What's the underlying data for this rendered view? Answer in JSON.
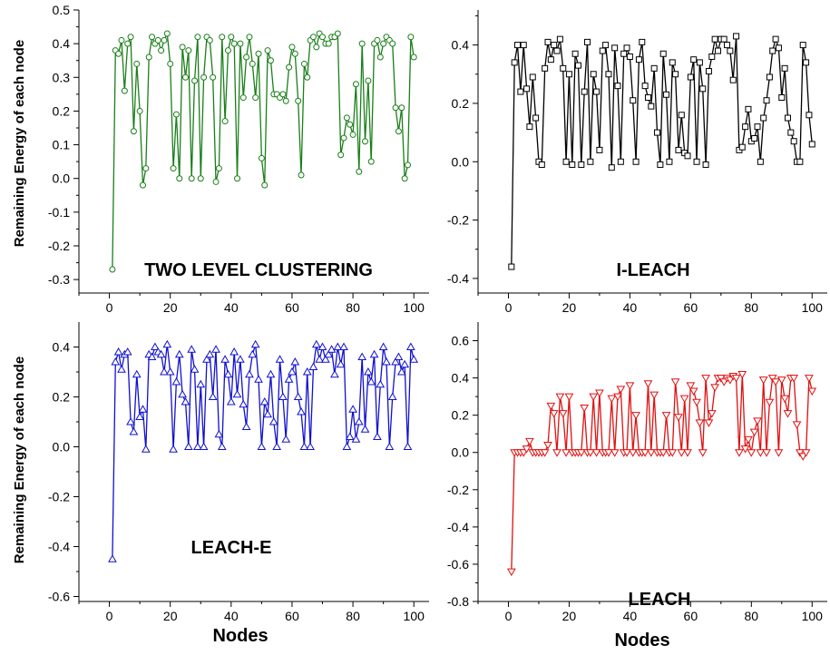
{
  "figure": {
    "y_axis_label": "Remaining Energy of each node",
    "x_axis_label": "Nodes"
  },
  "chart_data": [
    {
      "type": "line",
      "title": "TWO LEVEL CLUSTERING",
      "xlabel": "",
      "ylabel": "Remaining Energy of each node",
      "xlim": [
        -10,
        105
      ],
      "ylim": [
        -0.34,
        0.5
      ],
      "xticks": [
        0,
        20,
        40,
        60,
        80,
        100
      ],
      "yticks": [
        -0.3,
        -0.2,
        -0.1,
        0.0,
        0.1,
        0.2,
        0.3,
        0.4,
        0.5
      ],
      "ytick_labels": [
        "-0.3",
        "-0.2",
        "-0.1",
        "0.0",
        "0.1",
        "0.2",
        "0.3",
        "0.4",
        "0.5"
      ],
      "marker": "circle",
      "color": "#1a7f1a",
      "series": [
        {
          "x": [
            1,
            2,
            3,
            4,
            5,
            6,
            7,
            8,
            9,
            10,
            11,
            12,
            13,
            14,
            15,
            16,
            17,
            18,
            19,
            20,
            21,
            22,
            23,
            24,
            25,
            26,
            27,
            28,
            29,
            30,
            31,
            32,
            33,
            34,
            35,
            36,
            37,
            38,
            39,
            40,
            41,
            42,
            43,
            44,
            45,
            46,
            47,
            48,
            49,
            50,
            51,
            52,
            53,
            54,
            55,
            56,
            57,
            58,
            59,
            60,
            61,
            62,
            63,
            64,
            65,
            66,
            67,
            68,
            69,
            70,
            71,
            72,
            73,
            74,
            75,
            76,
            77,
            78,
            79,
            80,
            81,
            82,
            83,
            84,
            85,
            86,
            87,
            88,
            89,
            90,
            91,
            92,
            93,
            94,
            95,
            96,
            97,
            98,
            99,
            100
          ],
          "values": [
            -0.27,
            0.38,
            0.37,
            0.41,
            0.26,
            0.4,
            0.42,
            0.14,
            0.34,
            0.2,
            -0.02,
            0.03,
            0.36,
            0.42,
            0.4,
            0.41,
            0.38,
            0.41,
            0.43,
            0.34,
            0.03,
            0.19,
            0.0,
            0.39,
            0.3,
            0.38,
            0.0,
            0.29,
            0.42,
            0.0,
            0.3,
            0.42,
            0.41,
            0.3,
            -0.01,
            0.03,
            0.42,
            0.17,
            0.38,
            0.42,
            0.4,
            0.0,
            0.4,
            0.24,
            0.36,
            0.42,
            0.34,
            0.24,
            0.37,
            0.06,
            -0.02,
            0.38,
            0.35,
            0.25,
            0.25,
            0.24,
            0.25,
            0.23,
            0.33,
            0.39,
            0.37,
            0.23,
            0.01,
            0.34,
            0.3,
            0.41,
            0.42,
            0.39,
            0.43,
            0.42,
            0.4,
            0.4,
            0.42,
            0.42,
            0.43,
            0.07,
            0.12,
            0.18,
            0.16,
            0.13,
            0.28,
            0.02,
            0.4,
            0.11,
            0.29,
            0.05,
            0.4,
            0.41,
            0.36,
            0.4,
            0.42,
            0.41,
            0.4,
            0.21,
            0.14,
            0.21,
            0.0,
            0.04,
            0.42,
            0.36
          ]
        }
      ]
    },
    {
      "type": "line",
      "title": "I-LEACH",
      "xlabel": "",
      "ylabel": "",
      "xlim": [
        -10,
        105
      ],
      "ylim": [
        -0.45,
        0.52
      ],
      "xticks": [
        0,
        20,
        40,
        60,
        80,
        100
      ],
      "yticks": [
        -0.4,
        -0.2,
        0.0,
        0.2,
        0.4
      ],
      "ytick_labels": [
        "-0.4",
        "-0.2",
        "0.0",
        "0.2",
        "0.4"
      ],
      "marker": "square",
      "color": "#000000",
      "series": [
        {
          "x": [
            1,
            2,
            3,
            4,
            5,
            6,
            7,
            8,
            9,
            10,
            11,
            12,
            13,
            14,
            15,
            16,
            17,
            18,
            19,
            20,
            21,
            22,
            23,
            24,
            25,
            26,
            27,
            28,
            29,
            30,
            31,
            32,
            33,
            34,
            35,
            36,
            37,
            38,
            39,
            40,
            41,
            42,
            43,
            44,
            45,
            46,
            47,
            48,
            49,
            50,
            51,
            52,
            53,
            54,
            55,
            56,
            57,
            58,
            59,
            60,
            61,
            62,
            63,
            64,
            65,
            66,
            67,
            68,
            69,
            70,
            71,
            72,
            73,
            74,
            75,
            76,
            77,
            78,
            79,
            80,
            81,
            82,
            83,
            84,
            85,
            86,
            87,
            88,
            89,
            90,
            91,
            92,
            93,
            94,
            95,
            96,
            97,
            98,
            99,
            100
          ],
          "values": [
            -0.36,
            0.34,
            0.4,
            0.24,
            0.4,
            0.25,
            0.12,
            0.29,
            0.15,
            0.0,
            -0.01,
            0.32,
            0.41,
            0.35,
            0.4,
            0.38,
            0.42,
            0.32,
            0.0,
            0.3,
            -0.01,
            0.37,
            0.33,
            -0.01,
            0.24,
            0.41,
            0.0,
            0.3,
            0.24,
            0.04,
            0.38,
            0.4,
            0.3,
            -0.02,
            0.39,
            0.26,
            0.0,
            0.37,
            0.39,
            0.36,
            0.21,
            0.0,
            0.35,
            0.41,
            0.26,
            0.22,
            0.19,
            0.32,
            0.1,
            -0.01,
            0.37,
            0.23,
            0.0,
            0.34,
            0.3,
            0.04,
            0.16,
            0.03,
            0.02,
            0.29,
            0.35,
            0.0,
            0.34,
            0.25,
            -0.01,
            0.31,
            0.36,
            0.42,
            0.38,
            0.42,
            0.42,
            0.4,
            0.38,
            0.28,
            0.43,
            0.04,
            0.05,
            0.12,
            0.18,
            0.07,
            0.08,
            0.12,
            0.0,
            0.15,
            0.21,
            0.29,
            0.38,
            0.42,
            0.39,
            0.22,
            0.32,
            0.15,
            0.1,
            0.07,
            0.0,
            0.0,
            0.4,
            0.34,
            0.16,
            0.06
          ]
        }
      ]
    },
    {
      "type": "line",
      "title": "LEACH-E",
      "xlabel": "Nodes",
      "ylabel": "Remaining Energy of each node",
      "xlim": [
        -10,
        105
      ],
      "ylim": [
        -0.62,
        0.5
      ],
      "xticks": [
        0,
        20,
        40,
        60,
        80,
        100
      ],
      "yticks": [
        -0.6,
        -0.4,
        -0.2,
        0.0,
        0.2,
        0.4
      ],
      "ytick_labels": [
        "-0.6",
        "-0.4",
        "-0.2",
        "0.0",
        "0.2",
        "0.4"
      ],
      "marker": "triangle-up",
      "color": "#1010d0",
      "series": [
        {
          "x": [
            1,
            2,
            3,
            4,
            5,
            6,
            7,
            8,
            9,
            10,
            11,
            12,
            13,
            14,
            15,
            16,
            17,
            18,
            19,
            20,
            21,
            22,
            23,
            24,
            25,
            26,
            27,
            28,
            29,
            30,
            31,
            32,
            33,
            34,
            35,
            36,
            37,
            38,
            39,
            40,
            41,
            42,
            43,
            44,
            45,
            46,
            47,
            48,
            49,
            50,
            51,
            52,
            53,
            54,
            55,
            56,
            57,
            58,
            59,
            60,
            61,
            62,
            63,
            64,
            65,
            66,
            67,
            68,
            69,
            70,
            71,
            72,
            73,
            74,
            75,
            76,
            77,
            78,
            79,
            80,
            81,
            82,
            83,
            84,
            85,
            86,
            87,
            88,
            89,
            90,
            91,
            92,
            93,
            94,
            95,
            96,
            97,
            98,
            99,
            100
          ],
          "values": [
            -0.45,
            0.34,
            0.38,
            0.31,
            0.37,
            0.38,
            0.1,
            0.06,
            0.29,
            0.12,
            0.15,
            -0.01,
            0.37,
            0.36,
            0.4,
            0.38,
            0.37,
            0.3,
            0.41,
            0.3,
            -0.01,
            0.26,
            0.37,
            0.21,
            0.18,
            0.0,
            0.39,
            0.31,
            0.0,
            0.25,
            0.0,
            0.35,
            0.37,
            0.2,
            0.39,
            0.05,
            0.0,
            0.35,
            0.29,
            0.18,
            0.38,
            0.21,
            0.35,
            0.17,
            0.08,
            0.29,
            0.37,
            0.41,
            0.27,
            0.0,
            0.18,
            0.13,
            0.29,
            0.1,
            0.0,
            0.35,
            0.2,
            0.03,
            0.27,
            0.3,
            0.34,
            0.2,
            0.14,
            0.0,
            0.3,
            0.0,
            0.32,
            0.41,
            0.35,
            0.4,
            0.35,
            0.37,
            0.39,
            0.29,
            0.4,
            0.33,
            0.4,
            0.0,
            0.04,
            0.15,
            0.03,
            0.1,
            0.36,
            0.07,
            0.3,
            0.26,
            0.37,
            0.04,
            0.25,
            0.4,
            0.34,
            0.0,
            0.2,
            0.34,
            0.36,
            0.3,
            0.33,
            0.0,
            0.4,
            0.35
          ]
        }
      ]
    },
    {
      "type": "line",
      "title": "LEACH",
      "xlabel": "Nodes",
      "ylabel": "",
      "xlim": [
        -10,
        105
      ],
      "ylim": [
        -0.8,
        0.7
      ],
      "xticks": [
        0,
        20,
        40,
        60,
        80,
        100
      ],
      "yticks": [
        -0.8,
        -0.6,
        -0.4,
        -0.2,
        0.0,
        0.2,
        0.4,
        0.6
      ],
      "ytick_labels": [
        "-0.8",
        "-0.6",
        "-0.4",
        "-0.2",
        "0.0",
        "0.2",
        "0.4",
        "0.6"
      ],
      "marker": "triangle-down",
      "color": "#e01010",
      "series": [
        {
          "x": [
            1,
            2,
            3,
            4,
            5,
            6,
            7,
            8,
            9,
            10,
            11,
            12,
            13,
            14,
            15,
            16,
            17,
            18,
            19,
            20,
            21,
            22,
            23,
            24,
            25,
            26,
            27,
            28,
            29,
            30,
            31,
            32,
            33,
            34,
            35,
            36,
            37,
            38,
            39,
            40,
            41,
            42,
            43,
            44,
            45,
            46,
            47,
            48,
            49,
            50,
            51,
            52,
            53,
            54,
            55,
            56,
            57,
            58,
            59,
            60,
            61,
            62,
            63,
            64,
            65,
            66,
            67,
            68,
            69,
            70,
            71,
            72,
            73,
            74,
            75,
            76,
            77,
            78,
            79,
            80,
            81,
            82,
            83,
            84,
            85,
            86,
            87,
            88,
            89,
            90,
            91,
            92,
            93,
            94,
            95,
            96,
            97,
            98,
            99,
            100
          ],
          "values": [
            -0.64,
            0.0,
            0.0,
            0.0,
            0.0,
            0.02,
            0.06,
            0.0,
            0.0,
            0.0,
            0.0,
            0.0,
            0.04,
            0.25,
            0.21,
            0.0,
            0.3,
            0.21,
            0.0,
            0.3,
            0.0,
            0.0,
            0.0,
            0.0,
            0.24,
            0.0,
            0.0,
            0.3,
            0.0,
            0.32,
            0.0,
            0.0,
            0.0,
            0.29,
            0.0,
            0.3,
            0.34,
            0.0,
            0.0,
            0.36,
            0.0,
            0.2,
            0.0,
            0.0,
            0.0,
            0.37,
            0.0,
            0.31,
            0.0,
            0.0,
            0.0,
            0.2,
            0.0,
            0.0,
            0.38,
            0.19,
            0.0,
            0.29,
            0.0,
            0.36,
            0.33,
            0.27,
            0.16,
            0.0,
            0.4,
            0.16,
            0.21,
            0.35,
            0.4,
            0.4,
            0.38,
            0.4,
            0.39,
            0.41,
            0.4,
            0.0,
            0.42,
            0.02,
            0.07,
            0.0,
            0.11,
            0.17,
            0.0,
            0.39,
            0.0,
            0.27,
            0.4,
            0.38,
            0.0,
            0.39,
            0.29,
            0.21,
            0.4,
            0.4,
            0.15,
            0.0,
            -0.02,
            0.0,
            0.4,
            0.33
          ]
        }
      ]
    }
  ]
}
